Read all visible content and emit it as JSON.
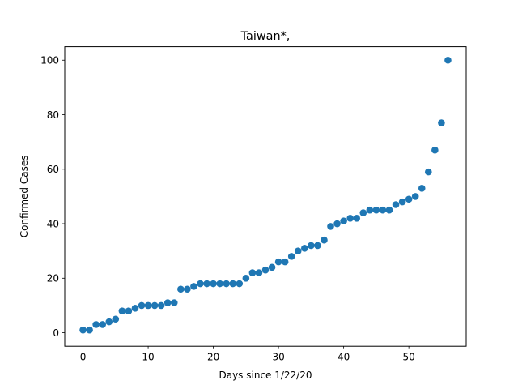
{
  "chart_data": {
    "type": "scatter",
    "title": "Taiwan*,",
    "xlabel": "Days since 1/22/20",
    "ylabel": "Confirmed Cases",
    "xlim": [
      -2.8,
      58.8
    ],
    "ylim": [
      -4.95,
      104.95
    ],
    "xticks": [
      0,
      10,
      20,
      30,
      40,
      50
    ],
    "yticks": [
      0,
      20,
      40,
      60,
      80,
      100
    ],
    "grid": false,
    "marker_color": "#1f77b4",
    "x": [
      0,
      1,
      2,
      3,
      4,
      5,
      6,
      7,
      8,
      9,
      10,
      11,
      12,
      13,
      14,
      15,
      16,
      17,
      18,
      19,
      20,
      21,
      22,
      23,
      24,
      25,
      26,
      27,
      28,
      29,
      30,
      31,
      32,
      33,
      34,
      35,
      36,
      37,
      38,
      39,
      40,
      41,
      42,
      43,
      44,
      45,
      46,
      47,
      48,
      49,
      50,
      51,
      52,
      53,
      54,
      55,
      56
    ],
    "y": [
      1,
      1,
      3,
      3,
      4,
      5,
      8,
      8,
      9,
      10,
      10,
      10,
      10,
      11,
      11,
      16,
      16,
      17,
      18,
      18,
      18,
      18,
      18,
      18,
      18,
      20,
      22,
      22,
      23,
      24,
      26,
      26,
      28,
      30,
      31,
      32,
      32,
      34,
      39,
      40,
      41,
      42,
      42,
      44,
      45,
      45,
      45,
      45,
      47,
      48,
      49,
      50,
      53,
      59,
      67,
      77,
      100
    ]
  }
}
